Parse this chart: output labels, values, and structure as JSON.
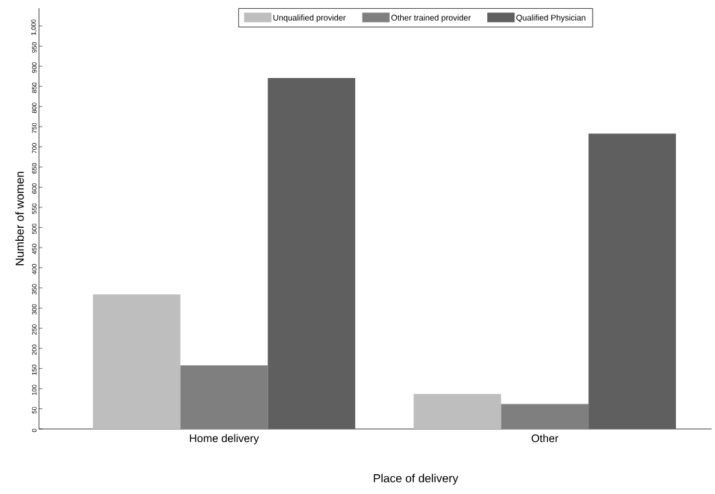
{
  "chart_data": {
    "type": "bar",
    "xlabel": "Place of delivery",
    "ylabel": "Number of women",
    "categories": [
      "Home delivery",
      "Other"
    ],
    "series": [
      {
        "name": "Unqualified provider",
        "color": "#bebebe",
        "values": [
          334,
          87
        ]
      },
      {
        "name": "Other trained provider",
        "color": "#7f7f7f",
        "values": [
          158,
          62
        ]
      },
      {
        "name": "Qualified Physician",
        "color": "#5f5f5f",
        "values": [
          871,
          733
        ]
      }
    ],
    "ylim": [
      0,
      1044
    ],
    "yticks": [
      0,
      50,
      100,
      150,
      200,
      250,
      300,
      350,
      400,
      450,
      500,
      550,
      600,
      650,
      700,
      750,
      800,
      850,
      900,
      950,
      {
        "value": 1000,
        "label": "1,000"
      }
    ],
    "legend": "top",
    "grid": false
  }
}
